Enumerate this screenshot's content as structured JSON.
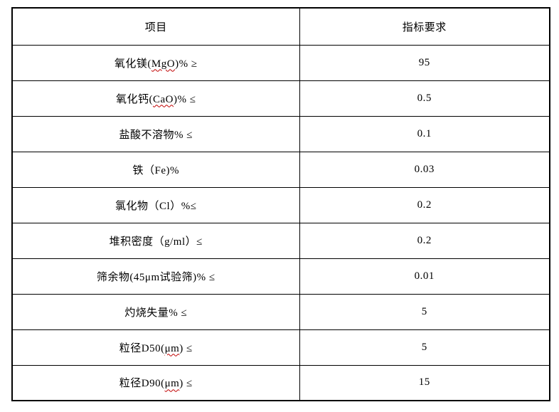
{
  "page": {
    "background_color": "#ffffff",
    "grid_color": "#000000",
    "text_color": "#000000",
    "squiggle_color": "#c00000"
  },
  "table": {
    "headers": [
      {
        "text": "项目"
      },
      {
        "text": "指标要求"
      }
    ],
    "rows": [
      {
        "label_parts": [
          {
            "text": "氧化镁(",
            "squiggle": false
          },
          {
            "text": "MgO",
            "squiggle": true
          },
          {
            "text": ")% ≥",
            "squiggle": false
          }
        ],
        "value": "95"
      },
      {
        "label_parts": [
          {
            "text": "氧化钙(",
            "squiggle": false
          },
          {
            "text": "CaO",
            "squiggle": true
          },
          {
            "text": ")% ≤",
            "squiggle": false
          }
        ],
        "value": "0.5"
      },
      {
        "label_parts": [
          {
            "text": "盐酸不溶物% ≤",
            "squiggle": false
          }
        ],
        "value": "0.1"
      },
      {
        "label_parts": [
          {
            "text": "铁（Fe)%",
            "squiggle": false
          }
        ],
        "value": "0.03"
      },
      {
        "label_parts": [
          {
            "text": "氯化物（Cl）%≤",
            "squiggle": false
          }
        ],
        "value": "0.2"
      },
      {
        "label_parts": [
          {
            "text": "堆积密度（g/ml）≤",
            "squiggle": false
          }
        ],
        "value": "0.2"
      },
      {
        "label_parts": [
          {
            "text": "筛余物(45μm试验筛)% ≤",
            "squiggle": false
          }
        ],
        "value": "0.01"
      },
      {
        "label_parts": [
          {
            "text": "灼烧失量% ≤",
            "squiggle": false
          }
        ],
        "value": "5"
      },
      {
        "label_parts": [
          {
            "text": "粒径D50(",
            "squiggle": false
          },
          {
            "text": "μm",
            "squiggle": true
          },
          {
            "text": ") ≤",
            "squiggle": false
          }
        ],
        "value": "5"
      },
      {
        "label_parts": [
          {
            "text": "粒径D90(",
            "squiggle": false
          },
          {
            "text": "μm",
            "squiggle": true
          },
          {
            "text": ") ≤",
            "squiggle": false
          }
        ],
        "value": "15"
      }
    ]
  }
}
